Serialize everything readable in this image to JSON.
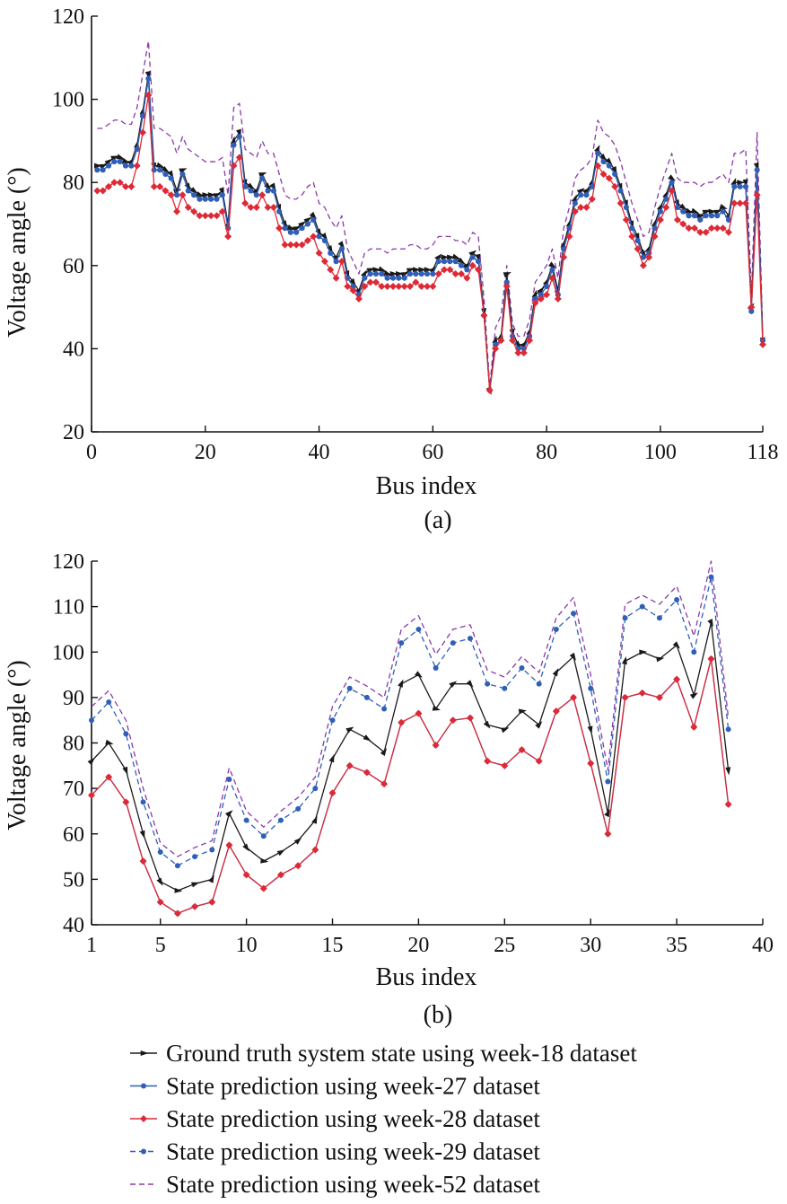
{
  "legend": [
    {
      "label": "Ground truth system state using week-18 dataset",
      "color": "#1a1a1a",
      "dash": "solid",
      "marker": "arrow"
    },
    {
      "label": "State prediction using week-27 dataset",
      "color": "#2f5fb8",
      "dash": "solid",
      "marker": "dot"
    },
    {
      "label": "State prediction using week-28 dataset",
      "color": "#dd2a36",
      "dash": "solid",
      "marker": "diamond"
    },
    {
      "label": "State prediction using week-29 dataset",
      "color": "#2f5fb8",
      "dash": "dashed",
      "marker": "dot"
    },
    {
      "label": "State prediction using week-52 dataset",
      "color": "#8a3aa8",
      "dash": "dashed",
      "marker": "none"
    }
  ],
  "chart_data": [
    {
      "type": "line",
      "panel_label": "(a)",
      "xlabel": "Bus index",
      "ylabel": "Voltage angle (°)",
      "xlim": [
        0,
        118
      ],
      "ylim": [
        20,
        120
      ],
      "xticks": [
        0,
        20,
        40,
        60,
        80,
        100,
        118
      ],
      "yticks": [
        20,
        40,
        60,
        80,
        100,
        120
      ],
      "x_start": 1,
      "series": [
        {
          "name": "Ground truth system state using week-18 dataset",
          "values": [
            84,
            84,
            85,
            86,
            86,
            85,
            85,
            89,
            97,
            106,
            84,
            84,
            83,
            82,
            78,
            83,
            79,
            78,
            77,
            77,
            77,
            77,
            78,
            70,
            90,
            92,
            80,
            79,
            78,
            82,
            79,
            79,
            74,
            70,
            69,
            69,
            70,
            71,
            72,
            68,
            67,
            64,
            62,
            65,
            58,
            56,
            54,
            58,
            59,
            59,
            59,
            58,
            58,
            58,
            58,
            59,
            59,
            59,
            59,
            59,
            62,
            62,
            62,
            62,
            61,
            60,
            63,
            62,
            49,
            30,
            42,
            43,
            58,
            44,
            41,
            41,
            44,
            53,
            54,
            56,
            60,
            54,
            65,
            70,
            76,
            78,
            78,
            80,
            88,
            86,
            85,
            83,
            79,
            75,
            70,
            67,
            63,
            64,
            70,
            74,
            77,
            81,
            75,
            74,
            73,
            73,
            72,
            73,
            73,
            73,
            74,
            72,
            80,
            80,
            80,
            50,
            84,
            42
          ]
        },
        {
          "name": "State prediction using week-27 dataset",
          "values": [
            83,
            83,
            84,
            85,
            85,
            84,
            84,
            88,
            96,
            105,
            83,
            83,
            82,
            81,
            77,
            82,
            78,
            77,
            76,
            76,
            76,
            76,
            77,
            69,
            89,
            91,
            79,
            78,
            77,
            81,
            78,
            78,
            73,
            69,
            68,
            68,
            69,
            70,
            71,
            67,
            66,
            63,
            61,
            64,
            57,
            55,
            53,
            57,
            58,
            58,
            58,
            57,
            57,
            57,
            57,
            58,
            58,
            58,
            58,
            58,
            61,
            61,
            61,
            61,
            60,
            59,
            62,
            61,
            48,
            30,
            41,
            42,
            56,
            43,
            40,
            40,
            43,
            52,
            53,
            55,
            59,
            53,
            64,
            69,
            75,
            77,
            77,
            79,
            87,
            85,
            84,
            82,
            78,
            74,
            69,
            66,
            62,
            63,
            69,
            73,
            76,
            80,
            74,
            73,
            72,
            72,
            71,
            72,
            72,
            72,
            73,
            71,
            79,
            79,
            79,
            49,
            83,
            42
          ]
        },
        {
          "name": "State prediction using week-28 dataset",
          "values": [
            78,
            78,
            79,
            80,
            80,
            79,
            79,
            84,
            92,
            101,
            79,
            79,
            78,
            77,
            73,
            77,
            74,
            73,
            72,
            72,
            72,
            72,
            73,
            67,
            84,
            86,
            75,
            74,
            74,
            77,
            74,
            74,
            69,
            65,
            65,
            65,
            65,
            66,
            67,
            63,
            61,
            59,
            57,
            61,
            55,
            54,
            52,
            55,
            56,
            56,
            55,
            55,
            55,
            55,
            55,
            55,
            56,
            55,
            55,
            55,
            58,
            59,
            59,
            58,
            58,
            57,
            60,
            59,
            48,
            30,
            40,
            42,
            55,
            42,
            39,
            39,
            42,
            51,
            52,
            53,
            57,
            52,
            62,
            67,
            73,
            74,
            74,
            76,
            84,
            82,
            81,
            79,
            75,
            71,
            67,
            64,
            60,
            62,
            67,
            71,
            74,
            78,
            71,
            70,
            69,
            69,
            68,
            68,
            69,
            69,
            69,
            68,
            75,
            75,
            75,
            50,
            77,
            41
          ]
        },
        {
          "name": "State prediction using week-29 dataset",
          "values": [
            83,
            83,
            84,
            85,
            85,
            84,
            84,
            88,
            96,
            105,
            83,
            83,
            82,
            81,
            77,
            82,
            78,
            77,
            76,
            76,
            76,
            76,
            77,
            69,
            89,
            91,
            79,
            78,
            77,
            81,
            78,
            78,
            73,
            69,
            68,
            68,
            69,
            70,
            71,
            67,
            66,
            63,
            61,
            64,
            57,
            55,
            53,
            57,
            58,
            58,
            58,
            57,
            57,
            57,
            57,
            58,
            58,
            58,
            58,
            58,
            61,
            61,
            61,
            61,
            60,
            59,
            62,
            61,
            48,
            30,
            41,
            42,
            56,
            43,
            40,
            40,
            43,
            52,
            53,
            55,
            59,
            53,
            64,
            69,
            75,
            77,
            77,
            79,
            87,
            85,
            84,
            82,
            78,
            74,
            69,
            66,
            62,
            63,
            69,
            73,
            76,
            80,
            74,
            73,
            72,
            72,
            71,
            72,
            72,
            72,
            73,
            71,
            79,
            79,
            79,
            49,
            83,
            42
          ]
        },
        {
          "name": "State prediction using week-52 dataset",
          "values": [
            93,
            93,
            94,
            95,
            95,
            94,
            94,
            98,
            106,
            114,
            93,
            93,
            92,
            91,
            87,
            91,
            88,
            87,
            86,
            85,
            85,
            85,
            86,
            77,
            98,
            99,
            88,
            87,
            86,
            90,
            87,
            87,
            82,
            77,
            76,
            76,
            77,
            79,
            80,
            75,
            74,
            71,
            69,
            72,
            64,
            61,
            58,
            63,
            64,
            64,
            64,
            63,
            64,
            64,
            64,
            65,
            65,
            64,
            64,
            65,
            67,
            67,
            67,
            66,
            66,
            65,
            68,
            67,
            52,
            31,
            45,
            48,
            60,
            46,
            43,
            43,
            47,
            56,
            58,
            60,
            64,
            57,
            69,
            74,
            81,
            83,
            84,
            86,
            95,
            92,
            91,
            89,
            85,
            80,
            75,
            71,
            67,
            68,
            74,
            79,
            83,
            87,
            81,
            80,
            80,
            80,
            79,
            80,
            80,
            81,
            82,
            80,
            87,
            87,
            88,
            53,
            92,
            43
          ]
        }
      ]
    },
    {
      "type": "line",
      "panel_label": "(b)",
      "xlabel": "Bus index",
      "ylabel": "Voltage angle (°)",
      "xlim": [
        1,
        40
      ],
      "ylim": [
        40,
        120
      ],
      "xticks": [
        1,
        5,
        10,
        15,
        20,
        25,
        30,
        35,
        40
      ],
      "yticks": [
        40,
        50,
        60,
        70,
        80,
        90,
        100,
        110,
        120
      ],
      "x_start": 1,
      "series": [
        {
          "name": "Ground truth system state using week-18 dataset",
          "values": [
            76,
            80,
            74,
            60,
            49.5,
            47.5,
            49,
            50,
            64.5,
            57,
            54,
            56,
            58.5,
            63,
            76.5,
            83,
            81,
            78,
            93,
            95,
            87.5,
            93,
            93,
            84,
            83,
            87,
            84,
            95.5,
            99,
            83,
            64.5,
            98,
            100,
            98.5,
            101.5,
            90.5,
            106.5,
            74
          ]
        },
        {
          "name": "State prediction using week-27 dataset",
          "values": [
            68.5,
            72.5,
            67,
            54,
            45,
            42.5,
            44,
            45,
            57.5,
            51,
            48,
            51,
            53,
            56.5,
            69,
            75,
            73.5,
            71,
            84.5,
            86.5,
            79.5,
            85,
            85.5,
            76,
            75,
            78.5,
            76,
            87,
            90,
            75.5,
            60,
            90,
            91,
            90,
            94,
            83.5,
            98.5,
            66.5
          ]
        },
        {
          "name": "State prediction using week-28 dataset",
          "values": [
            68.5,
            72.5,
            67,
            54,
            45,
            42.5,
            44,
            45,
            57.5,
            51,
            48,
            51,
            53,
            56.5,
            69,
            75,
            73.5,
            71,
            84.5,
            86.5,
            79.5,
            85,
            85.5,
            76,
            75,
            78.5,
            76,
            87,
            90,
            75.5,
            60,
            90,
            91,
            90,
            94,
            83.5,
            98.5,
            66.5
          ]
        },
        {
          "name": "State prediction using week-29 dataset",
          "values": [
            85,
            89,
            82,
            67,
            56,
            53,
            55,
            56.5,
            72,
            63,
            59.5,
            63,
            65.5,
            70,
            85,
            92,
            90,
            87.5,
            102,
            105,
            96.5,
            102,
            103,
            93,
            92,
            96.5,
            93,
            105,
            108.5,
            92,
            71.5,
            107.5,
            110,
            107.5,
            111.5,
            100,
            116.5,
            83
          ]
        },
        {
          "name": "State prediction using week-52 dataset",
          "values": [
            88,
            91.5,
            85,
            70,
            58,
            55,
            57,
            58.5,
            74.5,
            65,
            61.5,
            65,
            68,
            72.5,
            88,
            94.5,
            92.5,
            90,
            105,
            108,
            99.5,
            105,
            106,
            96,
            94.5,
            99,
            95.5,
            107.5,
            112,
            95,
            74,
            110.5,
            112.5,
            110.5,
            114.5,
            103.5,
            120,
            85.5
          ]
        }
      ]
    }
  ]
}
